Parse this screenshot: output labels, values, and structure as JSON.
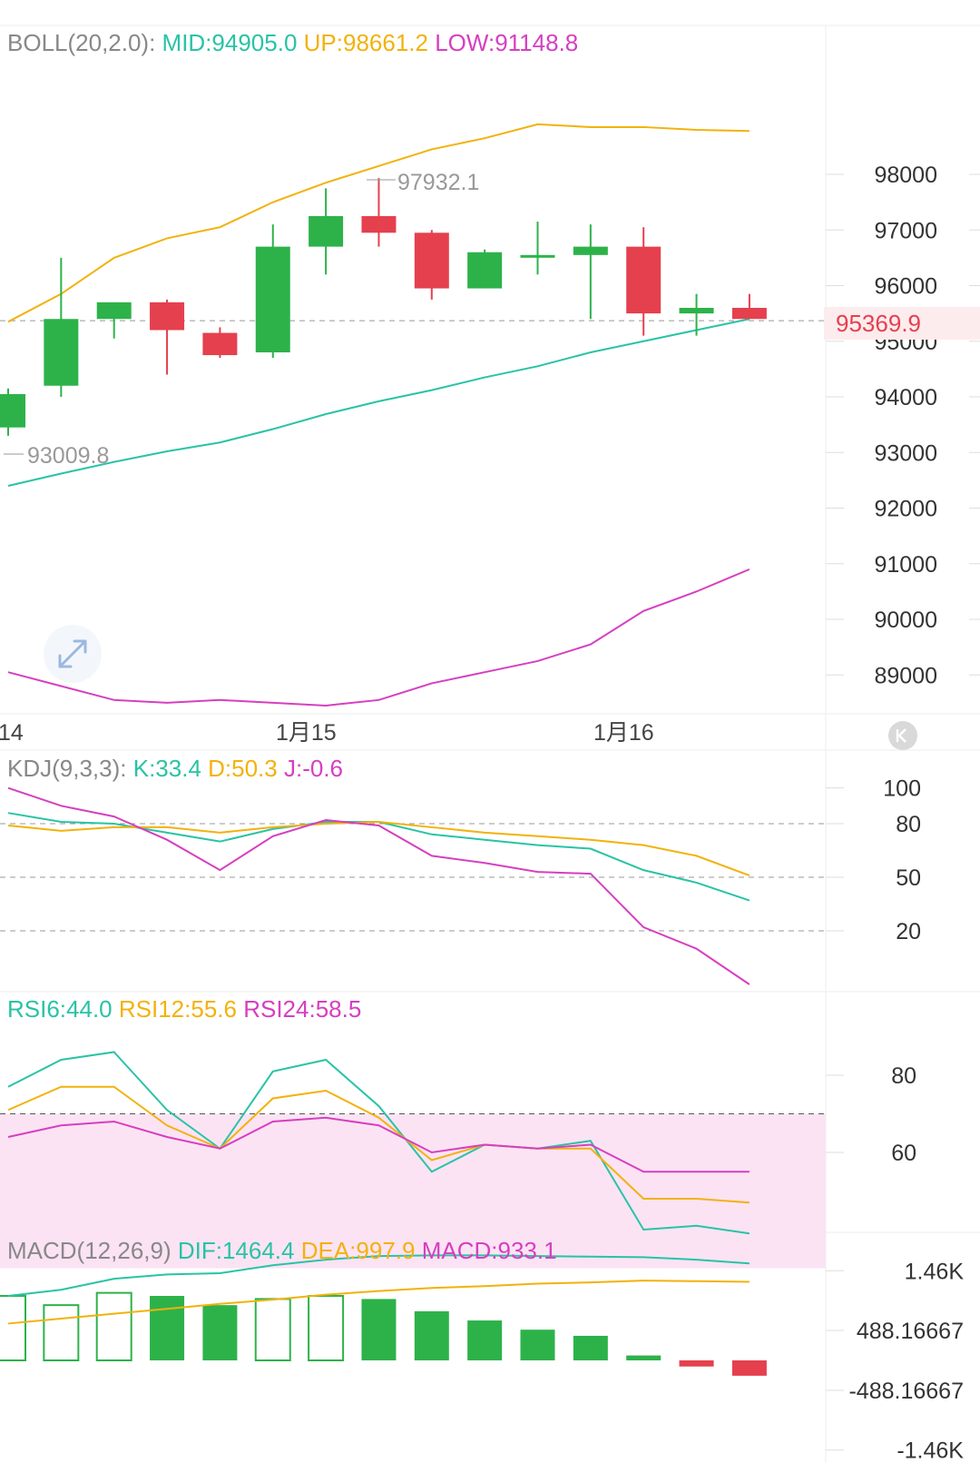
{
  "colors": {
    "up": "#2db24a",
    "down": "#e5404e",
    "mid": "#29c3a5",
    "upper": "#f2b20c",
    "lower": "#d63fc0",
    "grid": "#eeeeee",
    "label": "#888888",
    "text": "#333333",
    "rsiFill": "#fbe3f4",
    "price": "#e5404e"
  },
  "boll": {
    "title": "BOLL(20,2.0):",
    "mid": "MID:94905.0",
    "up": "UP:98661.2",
    "low": "LOW:91148.8",
    "high_label": "97932.1",
    "low_label": "93009.8",
    "last_price": "95369.9",
    "last_price_value": 95369.9,
    "high_value": 97932.1,
    "low_value": 93009.8,
    "yticks": [
      "98000",
      "97000",
      "96000",
      "95000",
      "94000",
      "93000",
      "92000",
      "91000",
      "90000",
      "89000"
    ],
    "ytick_values": [
      98000,
      97000,
      96000,
      95000,
      94000,
      93000,
      92000,
      91000,
      90000,
      89000
    ]
  },
  "dates": [
    "14",
    "1月15",
    "1月16"
  ],
  "kdj": {
    "title": "KDJ(9,3,3):",
    "k": "K:33.4",
    "d": "D:50.3",
    "j": "J:-0.6",
    "yticks": [
      "100",
      "80",
      "50",
      "20"
    ],
    "ytick_values": [
      100,
      80,
      50,
      20
    ]
  },
  "rsi": {
    "r6": "RSI6:44.0",
    "r12": "RSI12:55.6",
    "r24": "RSI24:58.5",
    "yticks": [
      "80",
      "60"
    ],
    "ytick_values": [
      80,
      60
    ]
  },
  "macd": {
    "title": "MACD(12,26,9)",
    "dif": "DIF:1464.4",
    "dea": "DEA:997.9",
    "m": "MACD:933.1",
    "yticks": [
      "1.46K",
      "488.16667",
      "-488.16667",
      "-1.46K"
    ],
    "ytick_values": [
      1460,
      488.16667,
      -488.16667,
      -1460
    ]
  },
  "chart_data": {
    "type": "candlestick",
    "candles": [
      {
        "o": 93450,
        "c": 94050,
        "h": 94150,
        "l": 93300
      },
      {
        "o": 94200,
        "c": 95400,
        "h": 96500,
        "l": 94000
      },
      {
        "o": 95400,
        "c": 95700,
        "h": 95700,
        "l": 95050
      },
      {
        "o": 95700,
        "c": 95200,
        "h": 95750,
        "l": 94400
      },
      {
        "o": 95150,
        "c": 94750,
        "h": 95250,
        "l": 94700
      },
      {
        "o": 94800,
        "c": 96700,
        "h": 97100,
        "l": 94700
      },
      {
        "o": 96700,
        "c": 97250,
        "h": 97750,
        "l": 96200
      },
      {
        "o": 97250,
        "c": 96950,
        "h": 97932.1,
        "l": 96700
      },
      {
        "o": 96950,
        "c": 95950,
        "h": 97000,
        "l": 95750
      },
      {
        "o": 95950,
        "c": 96600,
        "h": 96650,
        "l": 95950
      },
      {
        "o": 96550,
        "c": 96550,
        "h": 97150,
        "l": 96200
      },
      {
        "o": 96550,
        "c": 96700,
        "h": 97100,
        "l": 95400
      },
      {
        "o": 96700,
        "c": 95500,
        "h": 97050,
        "l": 95100
      },
      {
        "o": 95500,
        "c": 95600,
        "h": 95850,
        "l": 95100
      },
      {
        "o": 95600,
        "c": 95400,
        "h": 95850,
        "l": 95400
      }
    ],
    "boll_mid": [
      92400,
      92620,
      92830,
      93020,
      93180,
      93420,
      93690,
      93920,
      94120,
      94350,
      94550,
      94800,
      95000,
      95200,
      95400
    ],
    "boll_up": [
      95350,
      95850,
      96500,
      96850,
      97050,
      97500,
      97850,
      98150,
      98450,
      98650,
      98900,
      98850,
      98850,
      98800,
      98780
    ],
    "boll_low": [
      89050,
      88800,
      88550,
      88500,
      88550,
      88500,
      88450,
      88550,
      88850,
      89050,
      89250,
      89550,
      90150,
      90500,
      90900
    ],
    "kdj_k": [
      86,
      81,
      80,
      75,
      70,
      77,
      81,
      81,
      74,
      71,
      68,
      66,
      54,
      47,
      37
    ],
    "kdj_d": [
      79,
      76,
      78,
      78,
      75,
      78,
      80,
      81,
      78,
      75,
      73,
      71,
      68,
      62,
      51
    ],
    "kdj_j": [
      100,
      90,
      84,
      71,
      54,
      73,
      82,
      79,
      62,
      58,
      53,
      52,
      22,
      10,
      -10
    ],
    "rsi6": [
      77,
      84,
      86,
      71,
      61,
      81,
      84,
      72,
      55,
      62,
      61,
      63,
      40,
      41,
      39
    ],
    "rsi12": [
      71,
      77,
      77,
      67,
      61,
      74,
      76,
      69,
      58,
      62,
      61,
      61,
      48,
      48,
      47
    ],
    "rsi24": [
      64,
      67,
      68,
      64,
      61,
      68,
      69,
      67,
      60,
      62,
      61,
      62,
      55,
      55,
      55
    ],
    "macd_hist": [
      1050,
      900,
      1100,
      1050,
      900,
      1000,
      1050,
      1000,
      800,
      650,
      500,
      400,
      80,
      -100,
      -250
    ],
    "macd_hollow": [
      true,
      true,
      true,
      false,
      false,
      true,
      true,
      false,
      false,
      false,
      false,
      false,
      false,
      false,
      false
    ],
    "dif": [
      1050,
      1150,
      1330,
      1400,
      1420,
      1550,
      1640,
      1700,
      1710,
      1710,
      1700,
      1690,
      1680,
      1640,
      1580
    ],
    "dea": [
      600,
      680,
      760,
      840,
      920,
      990,
      1070,
      1130,
      1180,
      1210,
      1250,
      1270,
      1300,
      1290,
      1280
    ]
  }
}
